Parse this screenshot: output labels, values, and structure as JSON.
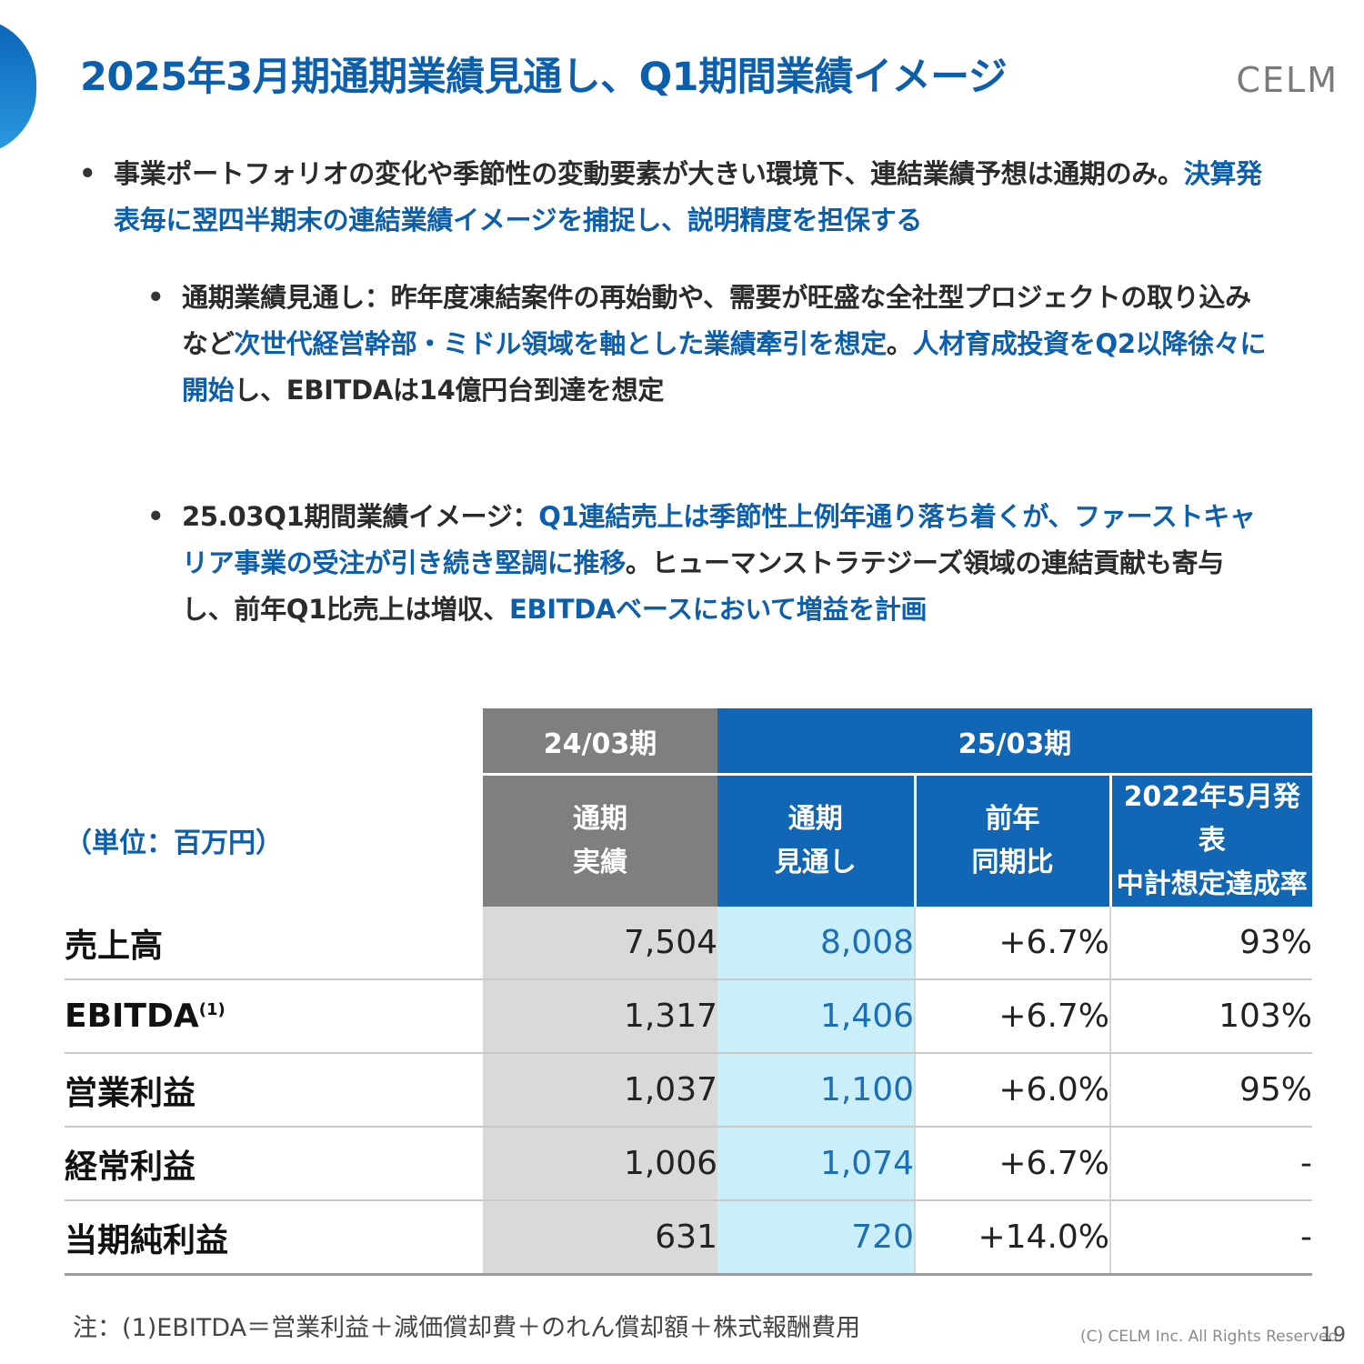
{
  "header": {
    "title": "2025年3月期通期業績見通し、Q1期間業績イメージ",
    "logo_text": "CELM"
  },
  "bullets": {
    "b1_plain": "事業ポートフォリオの変化や季節性の変動要素が大きい環境下、連結業績予想は通期のみ。",
    "b1_hl": "決算発表毎に翌四半期末の連結業績イメージを捕捉し、説明精度を担保する",
    "b2_plain1": "通期業績見通し：昨年度凍結案件の再始動や、需要が旺盛な全社型プロジェクトの取り込みなど",
    "b2_hl1": "次世代経営幹部・ミドル領域を軸とした業績牽引を想定",
    "b2_plain2": "。",
    "b2_hl2": "人材育成投資をQ2以降徐々に開始",
    "b2_plain3": "し、EBITDAは14億円台到達を想定",
    "b3_plain1": "25.03Q1期間業績イメージ：",
    "b3_hl1": "Q1連結売上は季節性上例年通り落ち着くが、ファーストキャリア事業の受注が引き続き堅調に推移",
    "b3_plain2": "。ヒューマンストラテジーズ領域の連結貢献も寄与し、前年Q1比売上は増収、",
    "b3_hl2": "EBITDAベースにおいて増益を計画"
  },
  "table": {
    "unit_label": "（単位：百万円）",
    "period_prev": "24/03期",
    "period_cur": "25/03期",
    "sub_prev_l1": "通期",
    "sub_prev_l2": "実績",
    "sub_cur1_l1": "通期",
    "sub_cur1_l2": "見通し",
    "sub_cur2_l1": "前年",
    "sub_cur2_l2": "同期比",
    "sub_cur3_l1": "2022年5月発表",
    "sub_cur3_l2": "中計想定達成率",
    "rows": [
      {
        "label": "売上高",
        "note": "",
        "prev": "7,504",
        "forecast": "8,008",
        "yoy": "+6.7%",
        "achieve": "93%"
      },
      {
        "label": "EBITDA",
        "note": "(1)",
        "prev": "1,317",
        "forecast": "1,406",
        "yoy": "+6.7%",
        "achieve": "103%"
      },
      {
        "label": "営業利益",
        "note": "",
        "prev": "1,037",
        "forecast": "1,100",
        "yoy": "+6.0%",
        "achieve": "95%"
      },
      {
        "label": "経常利益",
        "note": "",
        "prev": "1,006",
        "forecast": "1,074",
        "yoy": "+6.7%",
        "achieve": "-"
      },
      {
        "label": "当期純利益",
        "note": "",
        "prev": "631",
        "forecast": "720",
        "yoy": "+14.0%",
        "achieve": "-"
      }
    ]
  },
  "footer": {
    "footnote": "注：(1)EBITDA＝営業利益＋減価償却費＋のれん償却額＋株式報酬費用",
    "copyright": "(C) CELM Inc. All Rights Reserved.",
    "page_number": "19"
  },
  "colors": {
    "accent_blue": "#0c5fad",
    "header_blue": "#1166b5",
    "header_gray": "#7f7f7f",
    "forecast_bg": "#cbeefb",
    "prev_bg": "#d9d9d9"
  }
}
